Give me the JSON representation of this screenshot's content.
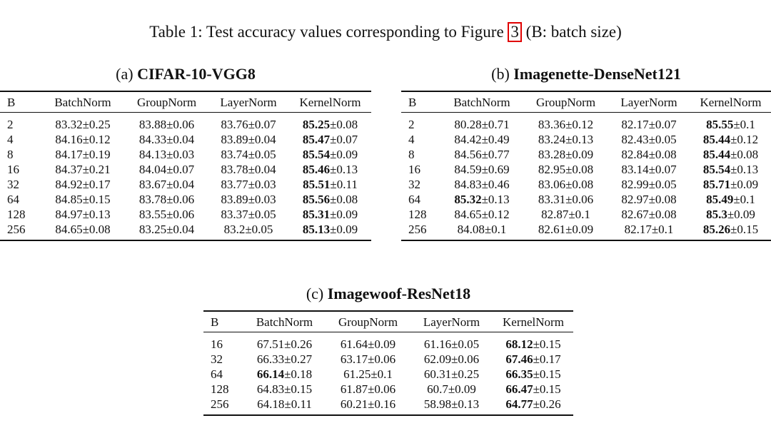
{
  "caption": {
    "prefix": "Table 1: Test accuracy values corresponding to Figure ",
    "figure_ref": "3",
    "suffix": " (B: batch size)"
  },
  "table_a": {
    "label": "(a)",
    "name": "CIFAR-10-VGG8",
    "headers": [
      "B",
      "BatchNorm",
      "GroupNorm",
      "LayerNorm",
      "KernelNorm"
    ],
    "rows": [
      {
        "b": "2",
        "cells": [
          {
            "m": "83.32",
            "s": "±0.25"
          },
          {
            "m": "83.88",
            "s": "±0.06"
          },
          {
            "m": "83.76",
            "s": "±0.07"
          },
          {
            "m": "85.25",
            "s": "±0.08",
            "bold": true
          }
        ]
      },
      {
        "b": "4",
        "cells": [
          {
            "m": "84.16",
            "s": "±0.12"
          },
          {
            "m": "84.33",
            "s": "±0.04"
          },
          {
            "m": "83.89",
            "s": "±0.04"
          },
          {
            "m": "85.47",
            "s": "±0.07",
            "bold": true
          }
        ]
      },
      {
        "b": "8",
        "cells": [
          {
            "m": "84.17",
            "s": "±0.19"
          },
          {
            "m": "84.13",
            "s": "±0.03"
          },
          {
            "m": "83.74",
            "s": "±0.05"
          },
          {
            "m": "85.54",
            "s": "±0.09",
            "bold": true
          }
        ]
      },
      {
        "b": "16",
        "cells": [
          {
            "m": "84.37",
            "s": "±0.21"
          },
          {
            "m": "84.04",
            "s": "±0.07"
          },
          {
            "m": "83.78",
            "s": "±0.04"
          },
          {
            "m": "85.46",
            "s": "±0.13",
            "bold": true
          }
        ]
      },
      {
        "b": "32",
        "cells": [
          {
            "m": "84.92",
            "s": "±0.17"
          },
          {
            "m": "83.67",
            "s": "±0.04"
          },
          {
            "m": "83.77",
            "s": "±0.03"
          },
          {
            "m": "85.51",
            "s": "±0.11",
            "bold": true
          }
        ]
      },
      {
        "b": "64",
        "cells": [
          {
            "m": "84.85",
            "s": "±0.15"
          },
          {
            "m": "83.78",
            "s": "±0.06"
          },
          {
            "m": "83.89",
            "s": "±0.03"
          },
          {
            "m": "85.56",
            "s": "±0.08",
            "bold": true
          }
        ]
      },
      {
        "b": "128",
        "cells": [
          {
            "m": "84.97",
            "s": "±0.13"
          },
          {
            "m": "83.55",
            "s": "±0.06"
          },
          {
            "m": "83.37",
            "s": "±0.05"
          },
          {
            "m": "85.31",
            "s": "±0.09",
            "bold": true
          }
        ]
      },
      {
        "b": "256",
        "cells": [
          {
            "m": "84.65",
            "s": "±0.08"
          },
          {
            "m": "83.25",
            "s": "±0.04"
          },
          {
            "m": "83.2",
            "s": "±0.05"
          },
          {
            "m": "85.13",
            "s": "±0.09",
            "bold": true
          }
        ]
      }
    ]
  },
  "table_b": {
    "label": "(b)",
    "name": "Imagenette-DenseNet121",
    "headers": [
      "B",
      "BatchNorm",
      "GroupNorm",
      "LayerNorm",
      "KernelNorm"
    ],
    "rows": [
      {
        "b": "2",
        "cells": [
          {
            "m": "80.28",
            "s": "±0.71"
          },
          {
            "m": "83.36",
            "s": "±0.12"
          },
          {
            "m": "82.17",
            "s": "±0.07"
          },
          {
            "m": "85.55",
            "s": "±0.1",
            "bold": true
          }
        ]
      },
      {
        "b": "4",
        "cells": [
          {
            "m": "84.42",
            "s": "±0.49"
          },
          {
            "m": "83.24",
            "s": "±0.13"
          },
          {
            "m": "82.43",
            "s": "±0.05"
          },
          {
            "m": "85.44",
            "s": "±0.12",
            "bold": true
          }
        ]
      },
      {
        "b": "8",
        "cells": [
          {
            "m": "84.56",
            "s": "±0.77"
          },
          {
            "m": "83.28",
            "s": "±0.09"
          },
          {
            "m": "82.84",
            "s": "±0.08"
          },
          {
            "m": "85.44",
            "s": "±0.08",
            "bold": true
          }
        ]
      },
      {
        "b": "16",
        "cells": [
          {
            "m": "84.59",
            "s": "±0.69"
          },
          {
            "m": "82.95",
            "s": "±0.08"
          },
          {
            "m": "83.14",
            "s": "±0.07"
          },
          {
            "m": "85.54",
            "s": "±0.13",
            "bold": true
          }
        ]
      },
      {
        "b": "32",
        "cells": [
          {
            "m": "84.83",
            "s": "±0.46"
          },
          {
            "m": "83.06",
            "s": "±0.08"
          },
          {
            "m": "82.99",
            "s": "±0.05"
          },
          {
            "m": "85.71",
            "s": "±0.09",
            "bold": true
          }
        ]
      },
      {
        "b": "64",
        "cells": [
          {
            "m": "85.32",
            "s": "±0.13",
            "bold": true
          },
          {
            "m": "83.31",
            "s": "±0.06"
          },
          {
            "m": "82.97",
            "s": "±0.08"
          },
          {
            "m": "85.49",
            "s": "±0.1",
            "bold": true
          }
        ]
      },
      {
        "b": "128",
        "cells": [
          {
            "m": "84.65",
            "s": "±0.12"
          },
          {
            "m": "82.87",
            "s": "±0.1"
          },
          {
            "m": "82.67",
            "s": "±0.08"
          },
          {
            "m": "85.3",
            "s": "±0.09",
            "bold": true
          }
        ]
      },
      {
        "b": "256",
        "cells": [
          {
            "m": "84.08",
            "s": "±0.1"
          },
          {
            "m": "82.61",
            "s": "±0.09"
          },
          {
            "m": "82.17",
            "s": "±0.1"
          },
          {
            "m": "85.26",
            "s": "±0.15",
            "bold": true
          }
        ]
      }
    ]
  },
  "table_c": {
    "label": "(c)",
    "name": "Imagewoof-ResNet18",
    "headers": [
      "B",
      "BatchNorm",
      "GroupNorm",
      "LayerNorm",
      "KernelNorm"
    ],
    "rows": [
      {
        "b": "16",
        "cells": [
          {
            "m": "67.51",
            "s": "±0.26"
          },
          {
            "m": "61.64",
            "s": "±0.09"
          },
          {
            "m": "61.16",
            "s": "±0.05"
          },
          {
            "m": "68.12",
            "s": "±0.15",
            "bold": true
          }
        ]
      },
      {
        "b": "32",
        "cells": [
          {
            "m": "66.33",
            "s": "±0.27"
          },
          {
            "m": "63.17",
            "s": "±0.06"
          },
          {
            "m": "62.09",
            "s": "±0.06"
          },
          {
            "m": "67.46",
            "s": "±0.17",
            "bold": true
          }
        ]
      },
      {
        "b": "64",
        "cells": [
          {
            "m": "66.14",
            "s": "±0.18",
            "bold": true
          },
          {
            "m": "61.25",
            "s": "±0.1"
          },
          {
            "m": "60.31",
            "s": "±0.25"
          },
          {
            "m": "66.35",
            "s": "±0.15",
            "bold": true
          }
        ]
      },
      {
        "b": "128",
        "cells": [
          {
            "m": "64.83",
            "s": "±0.15"
          },
          {
            "m": "61.87",
            "s": "±0.06"
          },
          {
            "m": "60.7",
            "s": "±0.09"
          },
          {
            "m": "66.47",
            "s": "±0.15",
            "bold": true
          }
        ]
      },
      {
        "b": "256",
        "cells": [
          {
            "m": "64.18",
            "s": "±0.11"
          },
          {
            "m": "60.21",
            "s": "±0.16"
          },
          {
            "m": "58.98",
            "s": "±0.13"
          },
          {
            "m": "64.77",
            "s": "±0.26",
            "bold": true
          }
        ]
      }
    ]
  }
}
